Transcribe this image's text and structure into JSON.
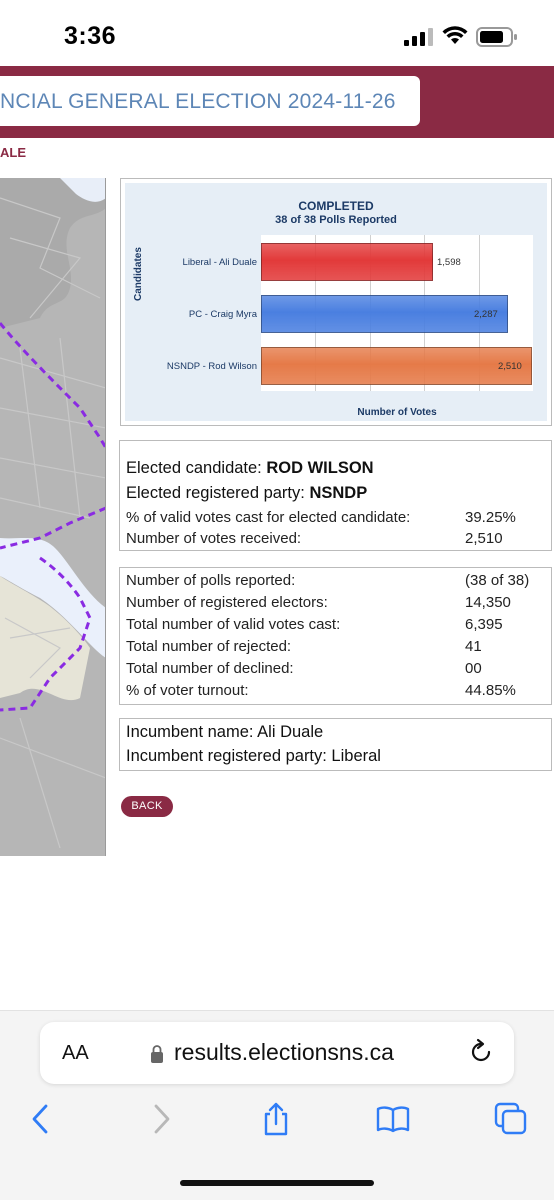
{
  "status_bar": {
    "time": "3:36"
  },
  "header": {
    "title": "NCIAL GENERAL ELECTION 2024-11-26",
    "breadcrumb": "ALE"
  },
  "chart_data": {
    "type": "bar",
    "orientation": "horizontal",
    "title": "COMPLETED",
    "subtitle": "38 of 38 Polls Reported",
    "ylabel": "Candidates",
    "xlabel": "Number of Votes",
    "categories": [
      "Liberal - Ali Duale",
      "PC - Craig Myra",
      "NSNDP - Rod Wilson"
    ],
    "values": [
      1598,
      2287,
      2510
    ],
    "value_labels": [
      "1,598",
      "2,287",
      "2,510"
    ],
    "colors": [
      "#e23a3a",
      "#4a7fe0",
      "#e57a48"
    ],
    "xlim": [
      0,
      2520
    ],
    "grid": true
  },
  "elected": {
    "candidate_label": "Elected candidate: ",
    "candidate": "ROD WILSON",
    "party_label": "Elected registered party: ",
    "party": "NSNDP",
    "pct_label": "% of valid votes cast for elected candidate:",
    "pct_value": "39.25%",
    "votes_label": "Number of votes received:",
    "votes_value": "2,510"
  },
  "stats": [
    {
      "label": "Number of polls reported:",
      "value": "(38 of 38)"
    },
    {
      "label": "Number of registered electors:",
      "value": "14,350"
    },
    {
      "label": "Total number of valid votes cast:",
      "value": "6,395"
    },
    {
      "label": "Total number of rejected:",
      "value": "41"
    },
    {
      "label": "Total number of declined:",
      "value": "00"
    },
    {
      "label": "% of voter turnout:",
      "value": "44.85%"
    }
  ],
  "incumbent": {
    "name_line": "Incumbent name: Ali Duale",
    "party_line": "Incumbent registered party: Liberal"
  },
  "back_label": "BACK",
  "safari": {
    "aa": "AA",
    "url": "results.electionsns.ca"
  }
}
